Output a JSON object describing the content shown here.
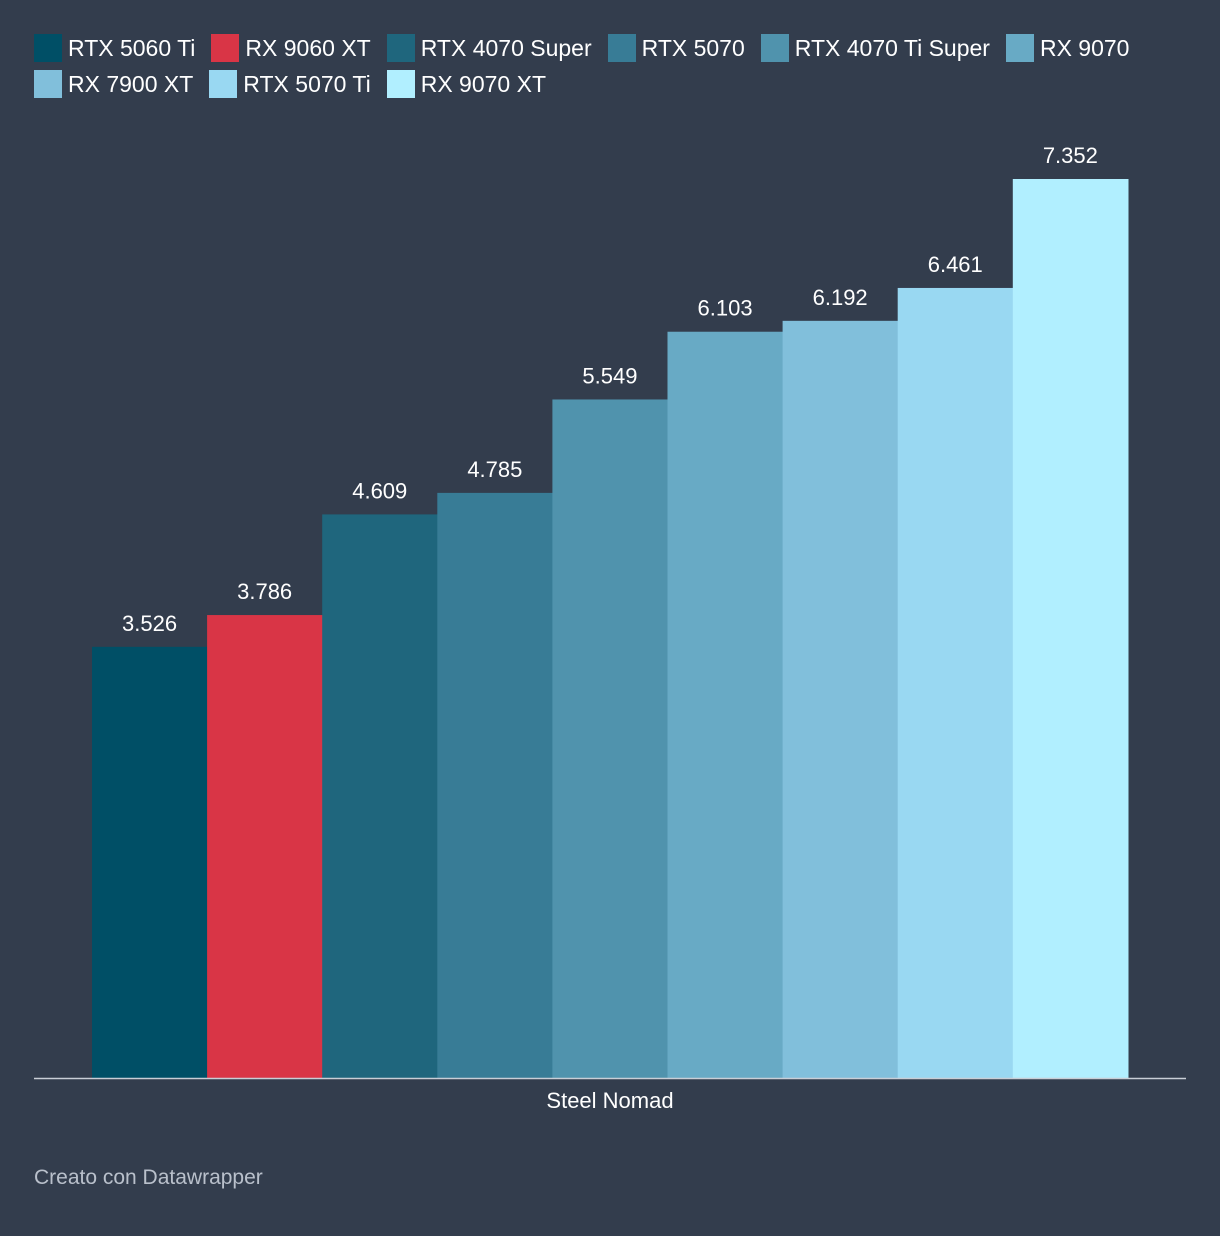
{
  "chart_data": {
    "type": "bar",
    "categories": [
      "Steel Nomad"
    ],
    "series": [
      {
        "name": "RTX 5060 Ti",
        "color": "#004f66",
        "values": [
          3.526
        ]
      },
      {
        "name": "RX 9060 XT",
        "color": "#d93546",
        "values": [
          3.786
        ]
      },
      {
        "name": "RTX 4070 Super",
        "color": "#1f667d",
        "values": [
          4.609
        ]
      },
      {
        "name": "RTX 5070",
        "color": "#387c96",
        "values": [
          4.785
        ]
      },
      {
        "name": "RTX 4070 Ti Super",
        "color": "#5093ad",
        "values": [
          5.549
        ]
      },
      {
        "name": "RX 9070",
        "color": "#68aac5",
        "values": [
          6.103
        ]
      },
      {
        "name": "RX 7900 XT",
        "color": "#81bfdb",
        "values": [
          6.192
        ]
      },
      {
        "name": "RTX 5070 Ti",
        "color": "#99d8f2",
        "values": [
          6.461
        ]
      },
      {
        "name": "RX 9070 XT",
        "color": "#b1efff",
        "values": [
          7.352
        ]
      }
    ],
    "ylim": [
      0,
      7.352
    ],
    "legend": "top",
    "grid": false,
    "value_labels": true
  },
  "footer": "Creato con Datawrapper"
}
